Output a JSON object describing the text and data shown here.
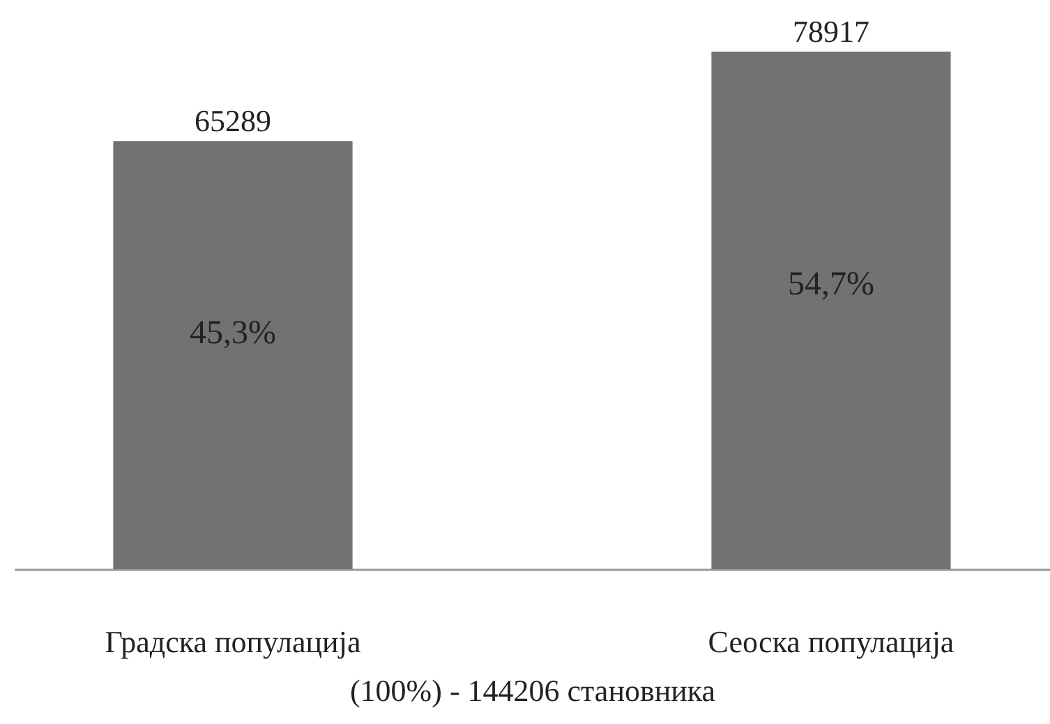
{
  "chart_data": {
    "type": "bar",
    "categories": [
      "Градска популација",
      "Сеоска популација"
    ],
    "values": [
      65289,
      78917
    ],
    "color": "#727272",
    "data_labels": true,
    "xlabel": "(100%) - 144206 становника",
    "annotations": [
      "45,3%",
      "54,7%"
    ]
  }
}
